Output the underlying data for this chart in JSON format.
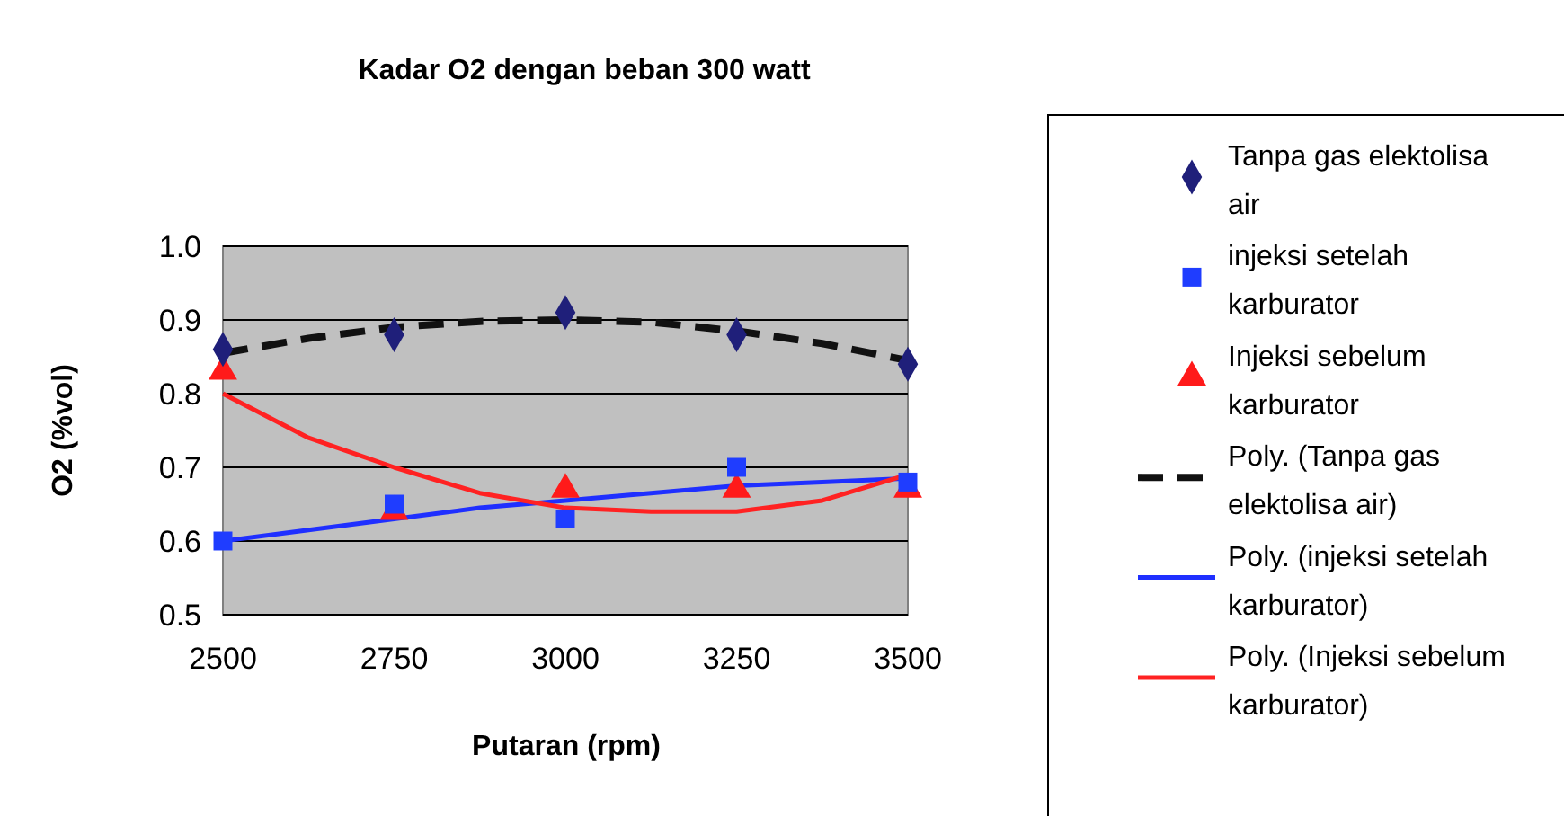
{
  "chart_data": {
    "type": "scatter",
    "title": "Kadar O2 dengan beban 300 watt",
    "xlabel": "Putaran (rpm)",
    "ylabel": "O2 (%vol)",
    "x": [
      2500,
      2750,
      3000,
      3250,
      3500
    ],
    "xlim": [
      2500,
      3500
    ],
    "xticks": [
      2500,
      2750,
      3000,
      3250,
      3500
    ],
    "ylim": [
      0.5,
      1.0
    ],
    "yticks": [
      {
        "value": 0.5,
        "label": "0.5"
      },
      {
        "value": 0.6,
        "label": "0.6"
      },
      {
        "value": 0.7,
        "label": "0.7"
      },
      {
        "value": 0.8,
        "label": "0.8"
      },
      {
        "value": 0.9,
        "label": "0.9"
      },
      {
        "value": 1.0,
        "label": "1.0"
      }
    ],
    "grid": "y",
    "legend": "right",
    "series": [
      {
        "name": "Tanpa gas elektolisa air",
        "color": "#1f1f7a",
        "marker": "diamond",
        "values": [
          0.86,
          0.88,
          0.91,
          0.88,
          0.84
        ]
      },
      {
        "name": "injeksi setelah karburator",
        "color": "#1f3dff",
        "marker": "square",
        "values": [
          0.6,
          0.65,
          0.63,
          0.7,
          0.68
        ]
      },
      {
        "name": "Injeksi sebelum karburator",
        "color": "#ff1a1a",
        "marker": "triangle",
        "values": [
          0.83,
          0.64,
          0.67,
          0.67,
          0.67
        ]
      },
      {
        "name": "Poly. (Tanpa gas elektolisa air)",
        "type": "line",
        "line_style": "dashed",
        "color": "#111111",
        "x": [
          2500,
          2625,
          2750,
          2875,
          3000,
          3125,
          3250,
          3375,
          3500
        ],
        "values": [
          0.855,
          0.875,
          0.89,
          0.898,
          0.9,
          0.897,
          0.885,
          0.868,
          0.845
        ]
      },
      {
        "name": "Poly. (injeksi setelah karburator)",
        "type": "line",
        "line_style": "solid",
        "color": "#1f2fff",
        "x": [
          2500,
          2625,
          2750,
          2875,
          3000,
          3125,
          3250,
          3375,
          3500
        ],
        "values": [
          0.6,
          0.615,
          0.63,
          0.645,
          0.655,
          0.665,
          0.675,
          0.68,
          0.685
        ]
      },
      {
        "name": "Poly. (Injeksi sebelum karburator)",
        "type": "line",
        "line_style": "solid",
        "color": "#ff2222",
        "x": [
          2500,
          2625,
          2750,
          2875,
          3000,
          3125,
          3250,
          3375,
          3500
        ],
        "values": [
          0.8,
          0.74,
          0.7,
          0.665,
          0.645,
          0.64,
          0.64,
          0.655,
          0.69
        ]
      }
    ]
  }
}
